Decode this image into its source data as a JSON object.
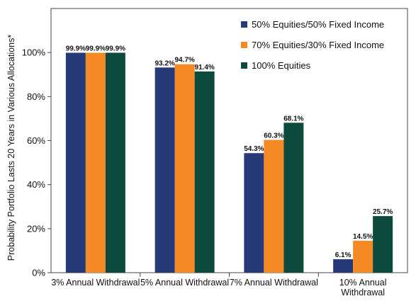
{
  "chart_data": {
    "type": "bar",
    "ylabel": "Probability Portfolio Lasts 20 Years in Various Allocations*",
    "xlabel": "",
    "ylim": [
      0,
      120
    ],
    "yticks": [
      0,
      20,
      40,
      60,
      80,
      100
    ],
    "ytick_labels": [
      "0%",
      "20%",
      "40%",
      "60%",
      "80%",
      "100%"
    ],
    "categories": [
      [
        "3% Annual Withdrawal"
      ],
      [
        "5% Annual Withdrawal"
      ],
      [
        "7% Annual Withdrawal"
      ],
      [
        "10% Annual",
        "Withdrawal"
      ]
    ],
    "series": [
      {
        "name": "50% Equities/50% Fixed Income",
        "color": "#263a7a",
        "values": [
          99.9,
          93.2,
          54.3,
          6.1
        ],
        "labels": [
          "99.9%",
          "93.2%",
          "54.3%",
          "6.1%"
        ]
      },
      {
        "name": "70% Equities/30% Fixed Income",
        "color": "#f48a24",
        "values": [
          99.9,
          94.7,
          60.3,
          14.5
        ],
        "labels": [
          "99.9%",
          "94.7%",
          "60.3%",
          "14.5%"
        ]
      },
      {
        "name": "100% Equities",
        "color": "#0b4a3c",
        "values": [
          99.9,
          91.4,
          68.1,
          25.7
        ],
        "labels": [
          "99.9%",
          "91.4%",
          "68.1%",
          "25.7%"
        ]
      }
    ],
    "legend_position": "top-right",
    "grid": false
  }
}
